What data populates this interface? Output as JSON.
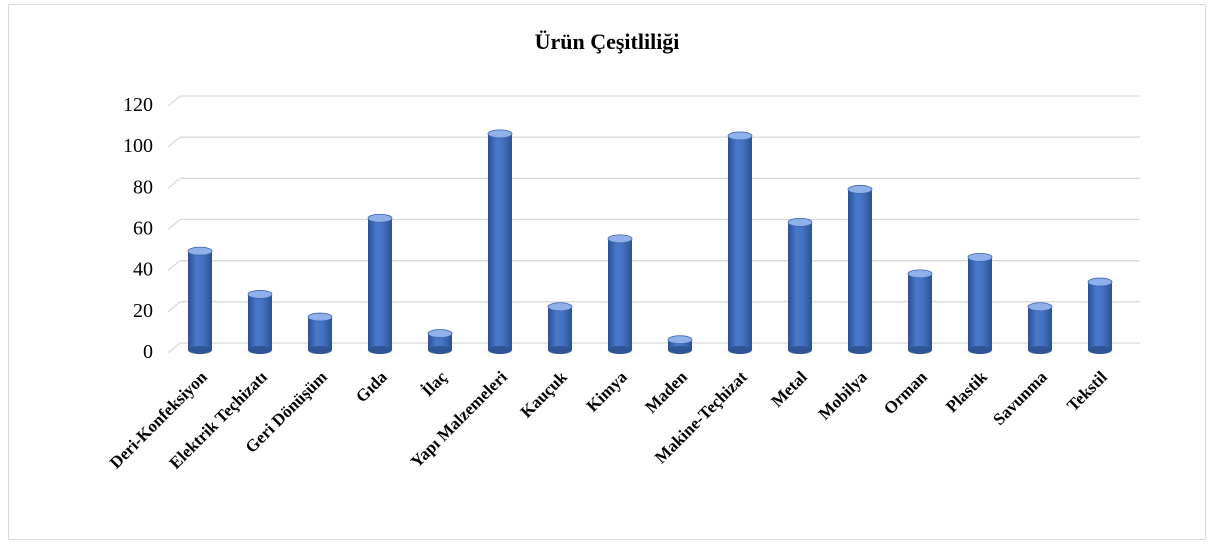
{
  "chart_data": {
    "type": "bar",
    "title": "Ürün Çeşitliliği",
    "xlabel": "",
    "ylabel": "",
    "categories": [
      "Deri-Konfeksiyon",
      "Elektrik Teçhizatı",
      "Geri Dönüşüm",
      "Gıda",
      "İlaç",
      "Yapı Malzemeleri",
      "Kauçuk",
      "Kimya",
      "Maden",
      "Makine-Teçhizat",
      "Metal",
      "Mobilya",
      "Orman",
      "Plastik",
      "Savunma",
      "Tekstil"
    ],
    "values": [
      48,
      27,
      16,
      64,
      8,
      105,
      21,
      54,
      5,
      104,
      62,
      78,
      37,
      45,
      21,
      33
    ],
    "ylim": [
      0,
      120
    ],
    "yticks": [
      0,
      20,
      40,
      60,
      80,
      100,
      120
    ],
    "grid": true,
    "legend": "none",
    "colors": {
      "bar": "#4472c4",
      "bar_dark": "#2f5597",
      "bar_light": "#6d93db",
      "top": "#8fb0e8"
    }
  }
}
